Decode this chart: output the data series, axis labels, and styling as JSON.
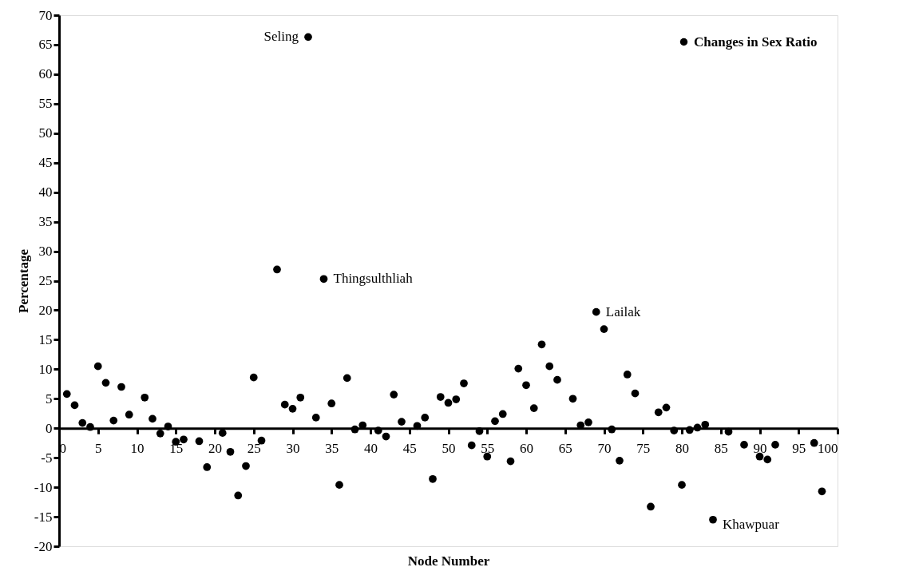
{
  "chart_data": {
    "type": "scatter",
    "xlabel": "Node Number",
    "ylabel": "Percentage",
    "x": [
      1,
      2,
      3,
      4,
      5,
      6,
      7,
      8,
      9,
      11,
      12,
      13,
      14,
      15,
      16,
      18,
      19,
      21,
      22,
      23,
      24,
      25,
      26,
      28,
      29,
      30,
      31,
      32,
      33,
      34,
      35,
      36,
      37,
      38,
      39,
      41,
      42,
      43,
      44,
      46,
      47,
      48,
      49,
      50,
      51,
      52,
      53,
      54,
      55,
      56,
      57,
      58,
      59,
      60,
      61,
      62,
      63,
      64,
      66,
      67,
      68,
      69,
      70,
      71,
      72,
      73,
      74,
      76,
      77,
      78,
      79,
      80,
      81,
      82,
      83,
      84,
      86,
      88,
      90,
      91,
      92,
      97,
      98
    ],
    "series": [
      {
        "name": "Changes in Sex Ratio",
        "color": "#000000",
        "values": [
          5.8,
          3.9,
          0.9,
          0.2,
          10.5,
          7.7,
          1.3,
          7.0,
          2.3,
          5.2,
          1.6,
          -0.9,
          0.3,
          -2.3,
          -1.9,
          -2.2,
          -6.6,
          -0.8,
          -4.0,
          -11.4,
          -6.4,
          8.6,
          -2.1,
          26.9,
          4.0,
          3.3,
          5.2,
          66.3,
          1.8,
          25.3,
          4.2,
          -9.6,
          8.5,
          -0.2,
          0.5,
          -0.4,
          -1.4,
          5.7,
          1.1,
          0.4,
          1.8,
          -8.6,
          5.3,
          4.3,
          4.9,
          7.6,
          -2.9,
          -0.5,
          -4.8,
          1.2,
          2.4,
          -5.6,
          10.1,
          7.3,
          3.4,
          14.2,
          10.5,
          8.2,
          5.0,
          0.5,
          1.0,
          19.7,
          16.8,
          -0.2,
          -5.5,
          9.1,
          5.9,
          -13.3,
          2.7,
          3.5,
          -0.4,
          -9.6,
          -0.3,
          0.1,
          0.6,
          -15.5,
          -0.6,
          -2.8,
          -4.8,
          -5.3,
          -2.8,
          -2.5,
          -10.7
        ]
      }
    ],
    "xlim": [
      0,
      100
    ],
    "xticks": [
      0,
      5,
      10,
      15,
      20,
      25,
      30,
      35,
      40,
      45,
      50,
      55,
      60,
      65,
      70,
      75,
      80,
      85,
      90,
      95,
      100
    ],
    "ylim": [
      -20,
      70
    ],
    "yticks": [
      -20,
      -15,
      -10,
      -5,
      0,
      5,
      10,
      15,
      20,
      25,
      30,
      35,
      40,
      45,
      50,
      55,
      60,
      65,
      70
    ],
    "grid": false,
    "legend": "top right",
    "marker": "circle",
    "annotations": [
      {
        "text": "Seling",
        "x": 32,
        "y": 66.3
      },
      {
        "text": "Thingsulthliah",
        "x": 34,
        "y": 25.3
      },
      {
        "text": "Lailak",
        "x": 69,
        "y": 19.7
      },
      {
        "text": "Khawpuar",
        "x": 84,
        "y": -15.5
      }
    ]
  }
}
